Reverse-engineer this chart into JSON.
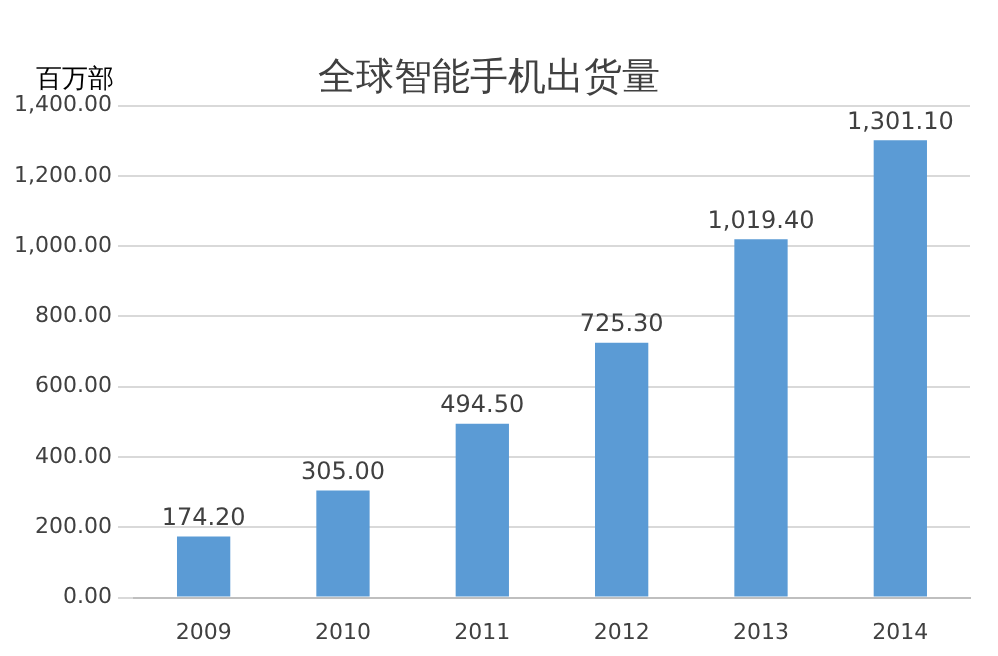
{
  "chart_data": {
    "type": "bar",
    "title": "全球智能手机出货量",
    "ylabel": "百万部",
    "categories": [
      "2009",
      "2010",
      "2011",
      "2012",
      "2013",
      "2014"
    ],
    "values": [
      174.2,
      305.0,
      494.5,
      725.3,
      1019.4,
      1301.1
    ],
    "value_labels": [
      "174.20",
      "305.00",
      "494.50",
      "725.30",
      "1,019.40",
      "1,301.10"
    ],
    "color": "#5b9bd5",
    "ylim": [
      0,
      1400
    ],
    "yticks": [
      {
        "value": 0,
        "label": "0.00"
      },
      {
        "value": 200,
        "label": "200.00"
      },
      {
        "value": 400,
        "label": "400.00"
      },
      {
        "value": 600,
        "label": "600.00"
      },
      {
        "value": 800,
        "label": "800.00"
      },
      {
        "value": 1000,
        "label": "1,000.00"
      },
      {
        "value": 1200,
        "label": "1,200.00"
      },
      {
        "value": 1400,
        "label": "1,400.00"
      }
    ],
    "grid": "y",
    "legend": false
  }
}
